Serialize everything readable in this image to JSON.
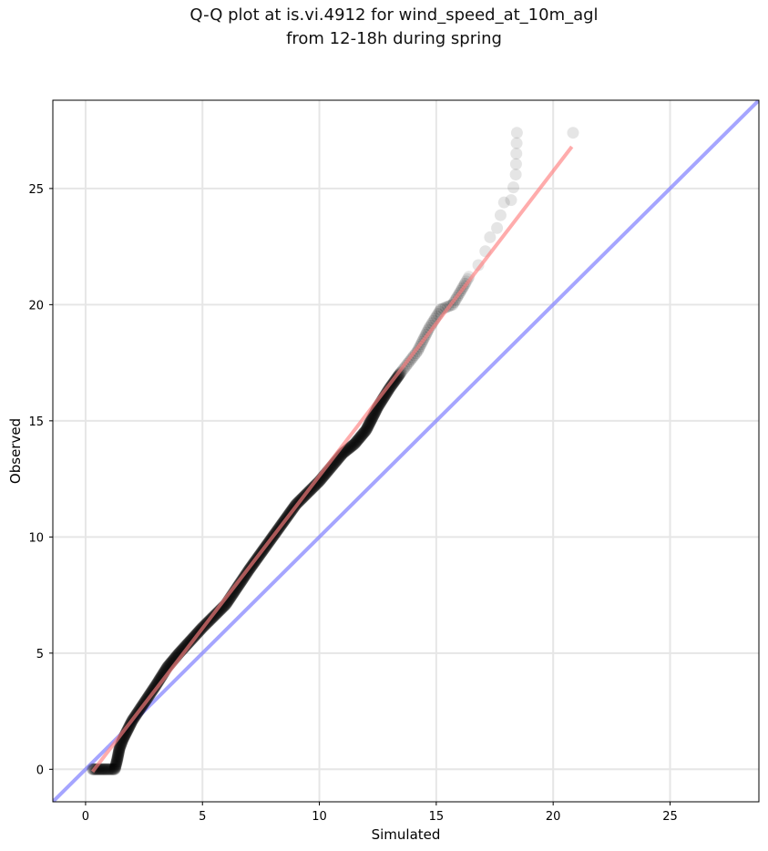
{
  "chart_data": {
    "type": "scatter",
    "title": "Q-Q plot at is.vi.4912 for wind_speed_at_10m_agl",
    "subtitle": "from 12-18h during spring",
    "xlabel": "Simulated",
    "ylabel": "Observed",
    "xlim": [
      -1.4,
      28.8
    ],
    "ylim": [
      -1.4,
      28.8
    ],
    "xticks": [
      0,
      5,
      10,
      15,
      20,
      25
    ],
    "yticks": [
      0,
      5,
      10,
      15,
      20,
      25
    ],
    "grid": true,
    "quantile_curve": [
      [
        0.3,
        0.0
      ],
      [
        0.9,
        0.0
      ],
      [
        1.25,
        0.0
      ],
      [
        1.35,
        0.4
      ],
      [
        1.45,
        0.9
      ],
      [
        1.6,
        1.3
      ],
      [
        1.8,
        1.7
      ],
      [
        2.0,
        2.1
      ],
      [
        2.4,
        2.7
      ],
      [
        3.0,
        3.6
      ],
      [
        3.5,
        4.4
      ],
      [
        4.0,
        5.0
      ],
      [
        5.0,
        6.1
      ],
      [
        6.0,
        7.1
      ],
      [
        7.0,
        8.6
      ],
      [
        8.0,
        10.0
      ],
      [
        9.0,
        11.4
      ],
      [
        10.0,
        12.4
      ],
      [
        11.0,
        13.6
      ],
      [
        11.5,
        14.0
      ],
      [
        12.0,
        14.6
      ],
      [
        12.5,
        15.6
      ],
      [
        13.0,
        16.4
      ],
      [
        13.5,
        17.1
      ],
      [
        14.2,
        18.0
      ],
      [
        14.7,
        19.0
      ],
      [
        15.2,
        19.8
      ],
      [
        15.7,
        20.0
      ],
      [
        16.0,
        20.5
      ],
      [
        16.4,
        21.2
      ],
      [
        16.8,
        21.7
      ],
      [
        17.1,
        22.3
      ],
      [
        17.3,
        22.9
      ],
      [
        17.6,
        23.3
      ],
      [
        17.9,
        24.4
      ],
      [
        18.2,
        24.5
      ],
      [
        18.4,
        25.6
      ],
      [
        18.45,
        27.4
      ],
      [
        20.85,
        27.4
      ]
    ],
    "series": [
      {
        "name": "",
        "role": "quantiles",
        "color": "#000000"
      },
      {
        "name": "",
        "role": "fit",
        "color": "#ff7f7f",
        "x": [
          0.3,
          20.8
        ],
        "y": [
          -0.1,
          26.8
        ]
      },
      {
        "name": "",
        "role": "identity",
        "color": "#7f7fff",
        "x": [
          -1.4,
          28.8
        ],
        "y": [
          -1.4,
          28.8
        ]
      }
    ]
  }
}
